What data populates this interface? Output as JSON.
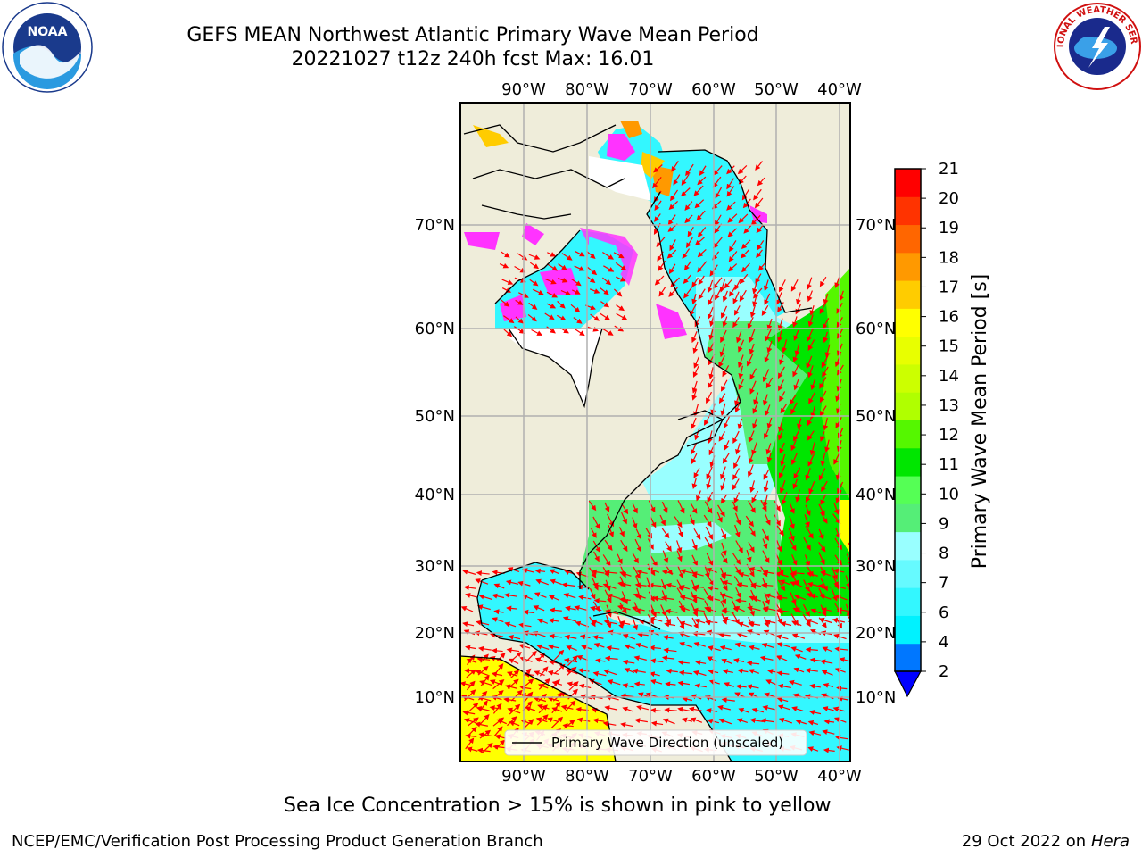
{
  "title": {
    "line1": "GEFS MEAN Northwest Atlantic Primary Wave Mean Period",
    "line2": "20221027 t12z 240h fcst   Max: 16.01"
  },
  "logos": {
    "left": {
      "name": "noaa-logo",
      "text": "NOAA"
    },
    "right": {
      "name": "nws-logo",
      "text": "NATIONAL WEATHER SERVICE"
    }
  },
  "map": {
    "lon_labels": [
      "90°W",
      "80°W",
      "70°W",
      "60°W",
      "50°W",
      "40°W"
    ],
    "lat_labels": [
      "70°N",
      "60°N",
      "50°N",
      "40°N",
      "30°N",
      "20°N",
      "10°N"
    ],
    "legend": "Primary Wave Direction (unscaled)",
    "colors": {
      "land": "#efedda",
      "ice": "#ff33ff",
      "grid": "#b0b0b0",
      "arrow": "#ff0000"
    }
  },
  "colorbar": {
    "label": "Primary Wave Mean Period [s]",
    "ticks": [
      "2",
      "4",
      "6",
      "7",
      "8",
      "9",
      "10",
      "11",
      "12",
      "13",
      "14",
      "15",
      "16",
      "17",
      "18",
      "19",
      "20",
      "21"
    ],
    "colors": [
      "#0077ff",
      "#00f2ff",
      "#33f7ff",
      "#66faff",
      "#99ffff",
      "#55ee77",
      "#55ff55",
      "#00e600",
      "#55f700",
      "#b0ff00",
      "#ccff00",
      "#e8ff00",
      "#ffff00",
      "#ffcc00",
      "#ff9900",
      "#ff6600",
      "#ff3300",
      "#ff0000"
    ],
    "extend_color": "#0000ff"
  },
  "note": "Sea Ice Concentration > 15% is shown in pink to yellow",
  "footer": {
    "left": "NCEP/EMC/Verification Post Processing Product Generation Branch",
    "right_date": "29 Oct 2022 on ",
    "right_host": "Hera"
  }
}
